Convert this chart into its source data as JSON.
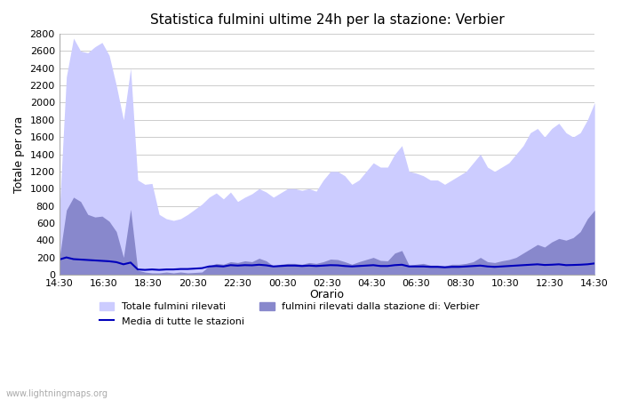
{
  "title": "Statistica fulmini ultime 24h per la stazione: Verbier",
  "ylabel": "Totale per ora",
  "xlabel": "Orario",
  "watermark": "www.lightningmaps.org",
  "x_labels": [
    "14:30",
    "16:30",
    "18:30",
    "20:30",
    "22:30",
    "00:30",
    "02:30",
    "04:30",
    "06:30",
    "08:30",
    "10:30",
    "12:30",
    "14:30"
  ],
  "ylim": [
    0,
    2800
  ],
  "yticks": [
    0,
    200,
    400,
    600,
    800,
    1000,
    1200,
    1400,
    1600,
    1800,
    2000,
    2200,
    2400,
    2600,
    2800
  ],
  "color_total": "#ccccff",
  "color_station": "#8888cc",
  "color_avg_line": "#0000bb",
  "legend_total": "Totale fulmini rilevati",
  "legend_station": "fulmini rilevati dalla stazione di: Verbier",
  "legend_avg": "Media di tutte le stazioni",
  "total_data": [
    700,
    2300,
    2750,
    2600,
    2580,
    2650,
    2700,
    2550,
    2200,
    1800,
    2400,
    1100,
    1050,
    1060,
    700,
    650,
    630,
    650,
    700,
    760,
    820,
    900,
    950,
    880,
    960,
    850,
    900,
    940,
    1000,
    960,
    900,
    950,
    1000,
    1000,
    980,
    1000,
    970,
    1100,
    1200,
    1200,
    1150,
    1050,
    1100,
    1200,
    1300,
    1250,
    1250,
    1400,
    1500,
    1200,
    1180,
    1150,
    1100,
    1100,
    1050,
    1100,
    1150,
    1200,
    1300,
    1400,
    1250,
    1200,
    1250,
    1300,
    1400,
    1500,
    1650,
    1700,
    1600,
    1700,
    1760,
    1650,
    1600,
    1650,
    1800,
    2000
  ],
  "station_data": [
    180,
    750,
    900,
    850,
    700,
    670,
    680,
    620,
    500,
    200,
    760,
    50,
    30,
    20,
    20,
    30,
    20,
    30,
    20,
    25,
    30,
    100,
    130,
    120,
    150,
    140,
    160,
    150,
    190,
    160,
    100,
    120,
    130,
    130,
    120,
    140,
    130,
    150,
    180,
    175,
    150,
    120,
    150,
    175,
    200,
    165,
    160,
    250,
    280,
    110,
    120,
    130,
    110,
    110,
    100,
    120,
    120,
    130,
    150,
    200,
    150,
    140,
    160,
    175,
    200,
    250,
    300,
    350,
    320,
    380,
    420,
    400,
    430,
    500,
    650,
    750
  ],
  "avg_data": [
    175,
    200,
    180,
    175,
    170,
    165,
    160,
    155,
    145,
    120,
    140,
    60,
    55,
    60,
    55,
    60,
    60,
    65,
    65,
    70,
    75,
    95,
    100,
    95,
    110,
    105,
    110,
    108,
    115,
    108,
    95,
    100,
    105,
    105,
    100,
    105,
    100,
    105,
    110,
    108,
    100,
    95,
    100,
    105,
    110,
    100,
    100,
    110,
    115,
    95,
    95,
    95,
    90,
    90,
    85,
    90,
    90,
    95,
    100,
    105,
    95,
    90,
    95,
    100,
    105,
    110,
    115,
    120,
    112,
    115,
    120,
    110,
    112,
    115,
    120,
    130
  ]
}
